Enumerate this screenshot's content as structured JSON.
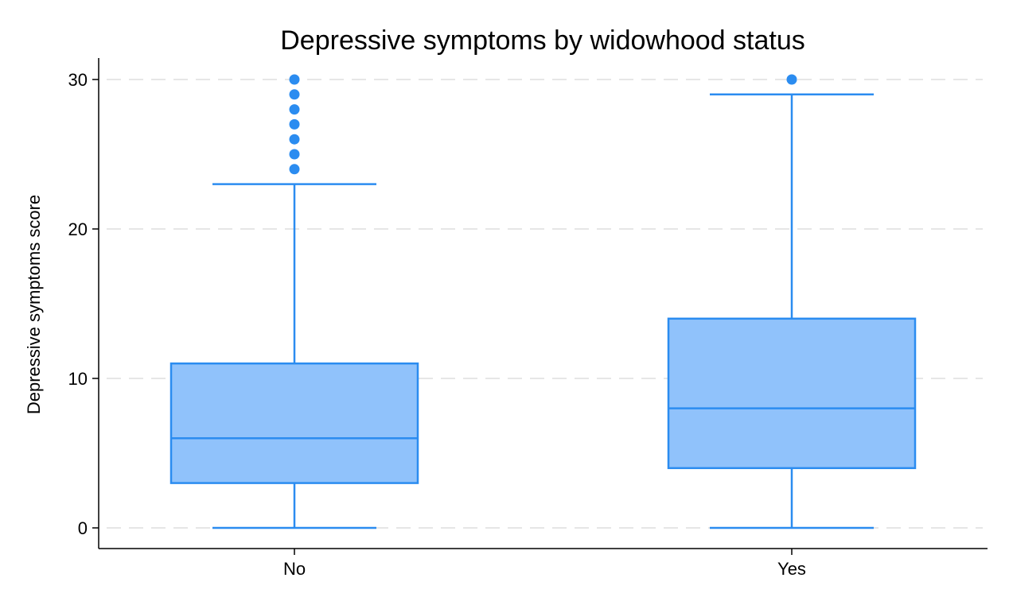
{
  "chart_data": {
    "type": "box",
    "title": "Depressive symptoms by widowhood status",
    "xlabel": "",
    "ylabel": "Depressive symptoms score",
    "ylim": [
      0,
      30
    ],
    "yticks": [
      0,
      10,
      20,
      30
    ],
    "grid": true,
    "categories": [
      "No",
      "Yes"
    ],
    "boxes": [
      {
        "category": "No",
        "whisker_low": 0,
        "q1": 3,
        "median": 6,
        "q3": 11,
        "whisker_high": 23,
        "outliers": [
          24,
          25,
          26,
          27,
          28,
          29,
          30
        ]
      },
      {
        "category": "Yes",
        "whisker_low": 0,
        "q1": 4,
        "median": 8,
        "q3": 14,
        "whisker_high": 29,
        "outliers": [
          30
        ]
      }
    ],
    "colors": {
      "box_fill": "#90c2fb",
      "box_stroke": "#2b8cf0",
      "outlier": "#2b8cf0"
    }
  }
}
